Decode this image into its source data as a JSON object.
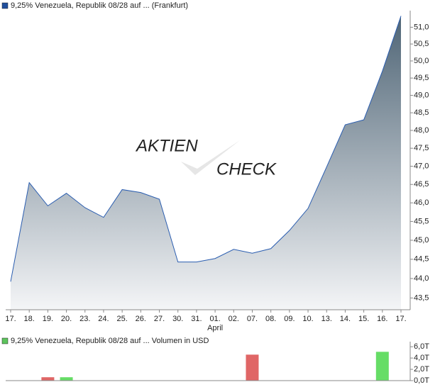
{
  "chart_data": [
    {
      "type": "area",
      "title": "9,25% Venezuela, Republik 08/28 auf ... (Frankfurt)",
      "legend_color": "#1f4e9c",
      "watermark": [
        "AKTIEN",
        "CHECK"
      ],
      "categories": [
        "17.",
        "18.",
        "19.",
        "20.",
        "23.",
        "24.",
        "25.",
        "26.",
        "27.",
        "30.",
        "31.",
        "01.",
        "02.",
        "07.",
        "08.",
        "09.",
        "10.",
        "13.",
        "14.",
        "15.",
        "16.",
        "17."
      ],
      "x_month_labels": [
        {
          "label": "April",
          "index": 11
        }
      ],
      "values": [
        43.92,
        46.55,
        45.92,
        46.26,
        45.87,
        45.61,
        46.36,
        46.28,
        46.1,
        44.43,
        44.43,
        44.52,
        44.76,
        44.66,
        44.78,
        45.26,
        45.85,
        46.98,
        48.16,
        48.3,
        49.7,
        51.34
      ],
      "color": "#2a5db0",
      "fill_top": "#4f6576",
      "fill_bottom": "#f4f5f7",
      "log": true,
      "ylim": [
        43.2,
        51.5
      ],
      "yticks": [
        {
          "value": 43.5,
          "label": "43,5"
        },
        {
          "value": 44.0,
          "label": "44,0"
        },
        {
          "value": 44.5,
          "label": "44,5"
        },
        {
          "value": 45.0,
          "label": "45,0"
        },
        {
          "value": 45.5,
          "label": "45,5"
        },
        {
          "value": 46.0,
          "label": "46,0"
        },
        {
          "value": 46.5,
          "label": "46,5"
        },
        {
          "value": 47.0,
          "label": "47,0"
        },
        {
          "value": 47.5,
          "label": "47,5"
        },
        {
          "value": 48.0,
          "label": "48,0"
        },
        {
          "value": 48.5,
          "label": "48,5"
        },
        {
          "value": 49.0,
          "label": "49,0"
        },
        {
          "value": 49.5,
          "label": "49,5"
        },
        {
          "value": 50.0,
          "label": "50,0"
        },
        {
          "value": 50.5,
          "label": "50,5"
        },
        {
          "value": 51.0,
          "label": "51,0"
        }
      ]
    },
    {
      "type": "bar",
      "title": "9,25% Venezuela, Republik 08/28 auf ... Volumen in USD",
      "legend_color": "#5cc45c",
      "values": [
        null,
        null,
        600,
        600,
        null,
        null,
        null,
        null,
        null,
        null,
        null,
        null,
        null,
        4600,
        null,
        null,
        null,
        null,
        null,
        null,
        5100,
        null
      ],
      "colors": [
        null,
        null,
        "#e06666",
        "#66dd66",
        null,
        null,
        null,
        null,
        null,
        null,
        null,
        null,
        null,
        "#e06666",
        null,
        null,
        null,
        null,
        null,
        null,
        "#66dd66",
        null
      ],
      "ylim": [
        0,
        6900
      ],
      "yticks": [
        {
          "value": 0,
          "label": "0,0T"
        },
        {
          "value": 2000,
          "label": "2,0T"
        },
        {
          "value": 4000,
          "label": "4,0T"
        },
        {
          "value": 6000,
          "label": "6,0T"
        }
      ]
    }
  ]
}
